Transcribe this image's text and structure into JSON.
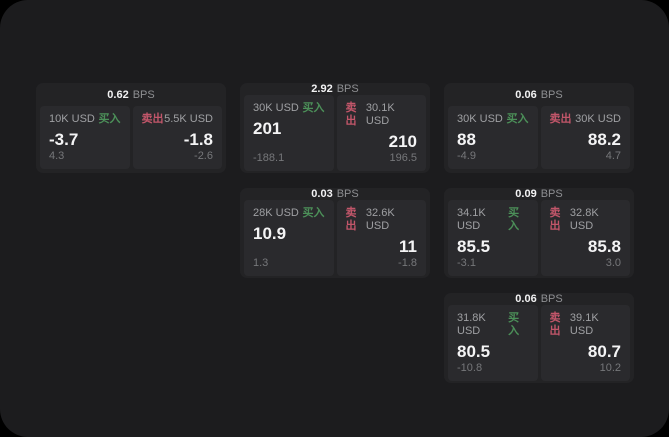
{
  "labels": {
    "bps_unit": "BPS",
    "buy": "买入",
    "sell": "卖出"
  },
  "colors": {
    "page_background": "#1c1c1e",
    "card_background": "#232325",
    "panel_background": "#2a2a2d",
    "buy_green": "#4c9059",
    "sell_red": "#c2566a",
    "primary_text": "#f4f4f5",
    "secondary_text": "#9fa0a3",
    "muted_text": "#76777a"
  },
  "cards": [
    {
      "bps": "0.62",
      "buy": {
        "amount": "10K USD",
        "price": "-3.7",
        "change": "4.3"
      },
      "sell": {
        "amount": "5.5K USD",
        "price": "-1.8",
        "change": "-2.6"
      }
    },
    {
      "bps": "2.92",
      "buy": {
        "amount": "30K USD",
        "price": "201",
        "change": "-188.1"
      },
      "sell": {
        "amount": "30.1K USD",
        "price": "210",
        "change": "196.5"
      }
    },
    {
      "bps": "0.06",
      "buy": {
        "amount": "30K USD",
        "price": "88",
        "change": "-4.9"
      },
      "sell": {
        "amount": "30K USD",
        "price": "88.2",
        "change": "4.7"
      }
    },
    {
      "bps": "0.03",
      "buy": {
        "amount": "28K USD",
        "price": "10.9",
        "change": "1.3"
      },
      "sell": {
        "amount": "32.6K USD",
        "price": "11",
        "change": "-1.8"
      }
    },
    {
      "bps": "0.09",
      "buy": {
        "amount": "34.1K USD",
        "price": "85.5",
        "change": "-3.1"
      },
      "sell": {
        "amount": "32.8K USD",
        "price": "85.8",
        "change": "3.0"
      }
    },
    {
      "bps": "0.06",
      "buy": {
        "amount": "31.8K USD",
        "price": "80.5",
        "change": "-10.8"
      },
      "sell": {
        "amount": "39.1K USD",
        "price": "80.7",
        "change": "10.2"
      }
    }
  ]
}
